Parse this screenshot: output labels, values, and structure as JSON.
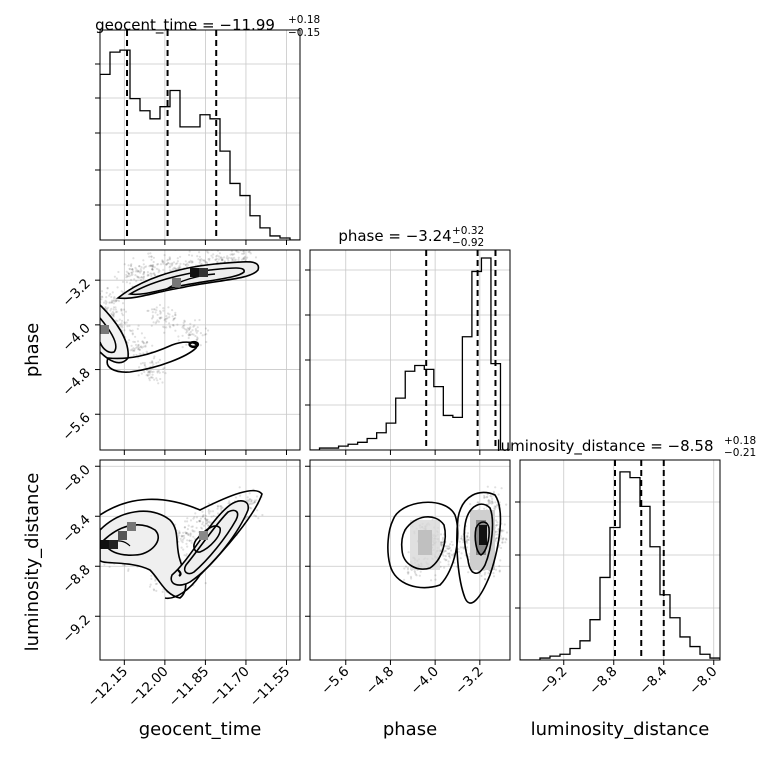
{
  "chart_data": {
    "type": "corner",
    "parameters": [
      "geocent_time",
      "phase",
      "luminosity_distance"
    ],
    "titles": [
      {
        "param": "geocent_time",
        "prefix": "geocent_time = ",
        "median": "−11.99",
        "plus": "+0.18",
        "minus": "−0.15"
      },
      {
        "param": "phase",
        "prefix": "phase = ",
        "median": "−3.24",
        "plus": "+0.32",
        "minus": "−0.92"
      },
      {
        "param": "luminosity_distance",
        "prefix": "luminosity_distance = ",
        "median": "−8.58",
        "plus": "+0.18",
        "minus": "−0.21"
      }
    ],
    "axes": {
      "geocent_time": {
        "range": [
          -12.24,
          -11.5
        ],
        "ticks": [
          -12.15,
          -12.0,
          -11.85,
          -11.7,
          -11.55
        ],
        "tick_labels": [
          "−12.15",
          "−12.00",
          "−11.85",
          "−11.70",
          "−11.55"
        ],
        "label": "geocent_time"
      },
      "phase": {
        "range": [
          -6.24,
          -2.66
        ],
        "ticks": [
          -5.6,
          -4.8,
          -4.0,
          -3.2
        ],
        "tick_labels": [
          "−5.6",
          "−4.8",
          "−4.0",
          "−3.2"
        ],
        "label": "phase"
      },
      "luminosity_distance": {
        "range": [
          -9.55,
          -7.95
        ],
        "ticks": [
          -9.2,
          -8.8,
          -8.4,
          -8.0
        ],
        "tick_labels": [
          "−9.2",
          "−8.8",
          "−8.4",
          "−8.0"
        ],
        "label": "luminosity_distance"
      }
    },
    "histograms": {
      "geocent_time": {
        "quantiles": [
          -12.14,
          -11.99,
          -11.81
        ],
        "counts": [
          0.82,
          0.93,
          0.94,
          0.7,
          0.64,
          0.6,
          0.66,
          0.74,
          0.56,
          0.56,
          0.62,
          0.6,
          0.44,
          0.28,
          0.22,
          0.12,
          0.06,
          0.02,
          0.01,
          0.0
        ]
      },
      "phase": {
        "quantiles": [
          -4.16,
          -3.24,
          -2.92
        ],
        "counts": [
          0.0,
          0.01,
          0.01,
          0.02,
          0.03,
          0.04,
          0.06,
          0.09,
          0.14,
          0.27,
          0.41,
          0.44,
          0.42,
          0.33,
          0.18,
          0.17,
          0.59,
          0.93,
          1.0,
          0.45,
          0.0
        ]
      },
      "luminosity_distance": {
        "quantiles": [
          -8.79,
          -8.58,
          -8.4
        ],
        "counts": [
          0.0,
          0.0,
          0.01,
          0.02,
          0.03,
          0.06,
          0.1,
          0.21,
          0.43,
          0.69,
          0.98,
          0.95,
          0.8,
          0.59,
          0.34,
          0.22,
          0.12,
          0.07,
          0.03,
          0.01
        ]
      }
    },
    "densities": {
      "phase_vs_geocent_time": {
        "points": [
          [
            -12.22,
            -3.8
          ],
          [
            -12.2,
            -3.6
          ],
          [
            -12.17,
            -4.1
          ],
          [
            -12.12,
            -3.1
          ],
          [
            -12.05,
            -3.0
          ],
          [
            -11.96,
            -2.95
          ],
          [
            -11.88,
            -2.9
          ],
          [
            -11.8,
            -2.85
          ],
          [
            -11.72,
            -2.8
          ],
          [
            -11.9,
            -4.15
          ],
          [
            -12.0,
            -3.9
          ],
          [
            -12.1,
            -4.4
          ],
          [
            -12.05,
            -4.8
          ]
        ]
      },
      "luminosity_distance_vs_geocent_time": {
        "points": [
          [
            -12.2,
            -8.65
          ],
          [
            -12.12,
            -8.55
          ],
          [
            -12.05,
            -8.5
          ],
          [
            -12.0,
            -8.6
          ],
          [
            -11.92,
            -8.55
          ],
          [
            -11.85,
            -8.45
          ],
          [
            -11.78,
            -8.4
          ],
          [
            -11.7,
            -8.3
          ],
          [
            -11.9,
            -8.8
          ],
          [
            -12.1,
            -8.7
          ],
          [
            -12.0,
            -8.9
          ]
        ]
      },
      "luminosity_distance_vs_phase": {
        "points": [
          [
            -4.2,
            -8.55
          ],
          [
            -4.0,
            -8.6
          ],
          [
            -3.8,
            -8.7
          ],
          [
            -3.4,
            -8.6
          ],
          [
            -3.05,
            -8.5
          ],
          [
            -2.95,
            -8.55
          ],
          [
            -3.1,
            -8.8
          ],
          [
            -4.3,
            -8.8
          ],
          [
            -3.0,
            -8.3
          ]
        ]
      }
    }
  }
}
